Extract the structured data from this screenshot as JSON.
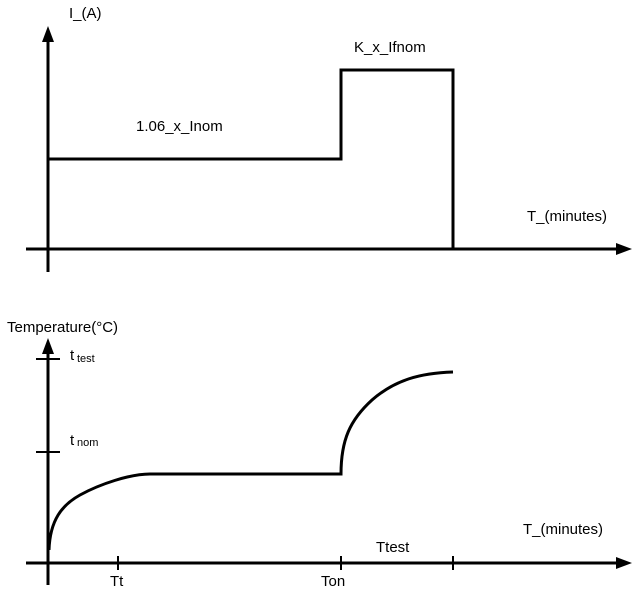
{
  "current_chart": {
    "y_axis_label": "I_(A)",
    "x_axis_label": "T_(minutes)",
    "level_low_label": "1.06_x_Inom",
    "level_high_label": "K_x_Ifnom"
  },
  "temperature_chart": {
    "y_axis_label": "Temperature(°C)",
    "x_axis_label": "T_(minutes)",
    "t_test_main": "t",
    "t_test_sub": "test",
    "t_nom_main": "t",
    "t_nom_sub": "nom",
    "tick_tt": "Tt",
    "tick_ton": "Ton",
    "ttest_label": "Ttest"
  },
  "colors": {
    "stroke": "#000000",
    "background": "#ffffff"
  }
}
